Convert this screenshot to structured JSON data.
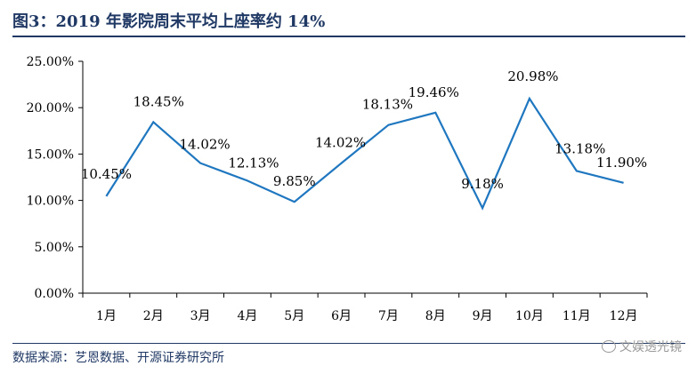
{
  "figure": {
    "title": "图3：2019 年影院周末平均上座率约 14%",
    "source": "数据来源：艺恩数据、开源证券研究所",
    "watermark": "文娱透光镜"
  },
  "chart_data": {
    "type": "line",
    "categories": [
      "1月",
      "2月",
      "3月",
      "4月",
      "5月",
      "6月",
      "7月",
      "8月",
      "9月",
      "10月",
      "11月",
      "12月"
    ],
    "series": [
      {
        "values": [
          10.45,
          18.45,
          14.02,
          12.13,
          9.85,
          14.02,
          18.13,
          19.46,
          9.18,
          20.98,
          13.18,
          11.9
        ],
        "labels": [
          "10.45%",
          "18.45%",
          "14.02%",
          "12.13%",
          "9.85%",
          "14.02%",
          "18.13%",
          "19.46%",
          "9.18%",
          "20.98%",
          "13.18%",
          "11.90%"
        ],
        "color": "#1f77c0"
      }
    ],
    "yticks": [
      "0.00%",
      "5.00%",
      "10.00%",
      "15.00%",
      "20.00%",
      "25.00%"
    ],
    "ylim": [
      0,
      25
    ],
    "grid": false,
    "legend": "none"
  }
}
